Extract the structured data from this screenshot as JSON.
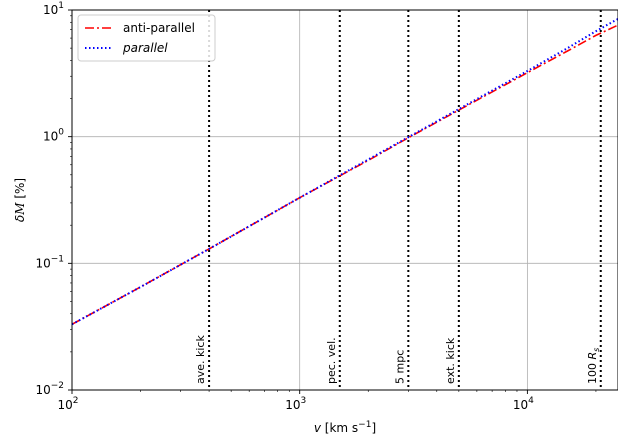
{
  "chart_data": {
    "type": "line",
    "x_scale": "log",
    "y_scale": "log",
    "xlim": [
      100,
      25000
    ],
    "ylim": [
      0.01,
      10
    ],
    "xlabel_prefix": "v",
    "xlabel_unit": "[km s",
    "xlabel_exp": "−1",
    "xlabel_close": "]",
    "ylabel_prefix": "δ",
    "ylabel_symbol": "M",
    "ylabel_unit": " [%]",
    "grid": true,
    "legend_position": "top-left",
    "x_ticks": [
      {
        "value": 100,
        "base": "10",
        "exp": "2"
      },
      {
        "value": 1000,
        "base": "10",
        "exp": "3"
      },
      {
        "value": 10000,
        "base": "10",
        "exp": "4"
      }
    ],
    "y_ticks": [
      {
        "value": 0.01,
        "base": "10",
        "exp": "−2"
      },
      {
        "value": 0.1,
        "base": "10",
        "exp": "−1"
      },
      {
        "value": 1,
        "base": "10",
        "exp": "0"
      },
      {
        "value": 10,
        "base": "10",
        "exp": "1"
      }
    ],
    "series": [
      {
        "name": "anti-parallel",
        "color": "#ff0000",
        "style": "dashdot",
        "x": [
          100,
          200,
          400,
          1000,
          2000,
          3000,
          5000,
          10000,
          15000,
          20000,
          25000
        ],
        "y": [
          0.033,
          0.065,
          0.13,
          0.33,
          0.65,
          0.98,
          1.62,
          3.2,
          4.75,
          6.3,
          7.6
        ]
      },
      {
        "name": "parallel",
        "name_italic": true,
        "color": "#0000ff",
        "style": "dotted",
        "x": [
          100,
          200,
          400,
          1000,
          2000,
          3000,
          5000,
          10000,
          15000,
          20000,
          25000
        ],
        "y": [
          0.033,
          0.065,
          0.13,
          0.33,
          0.66,
          0.99,
          1.65,
          3.3,
          5.0,
          6.8,
          8.5
        ]
      }
    ],
    "vlines": [
      {
        "x": 400,
        "label": "ave. kick"
      },
      {
        "x": 1500,
        "label": "pec. vel."
      },
      {
        "x": 3000,
        "label": "5 mpc"
      },
      {
        "x": 5000,
        "label": "ext. kick"
      },
      {
        "x": 21000,
        "label_prefix": "100 ",
        "label_symbol": "R",
        "label_sub": "s"
      }
    ]
  }
}
